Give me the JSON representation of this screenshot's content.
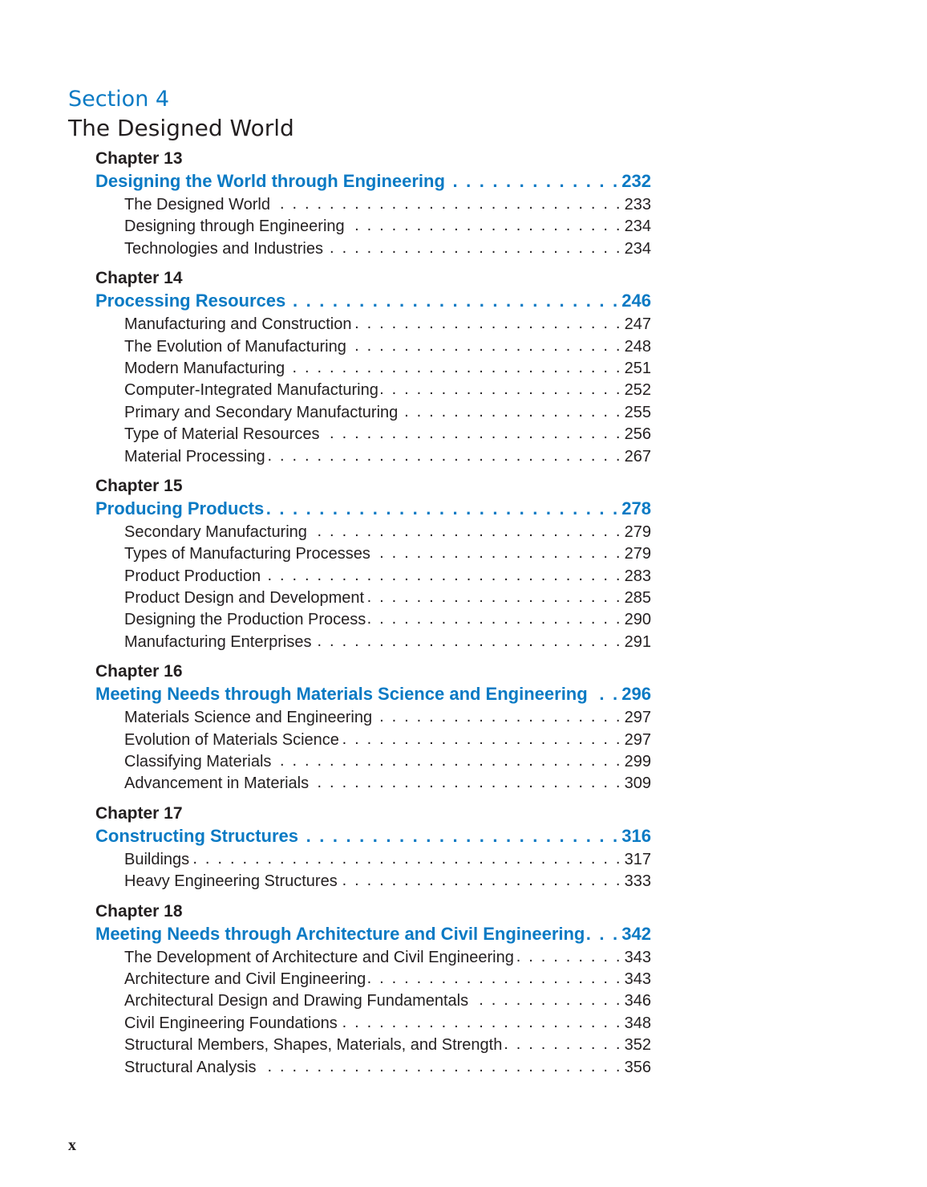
{
  "section": {
    "label": "Section 4",
    "title": "The Designed World"
  },
  "chapters": [
    {
      "label": "Chapter 13",
      "title": "Designing the World through Engineering",
      "page": "232",
      "items": [
        {
          "title": "The Designed World",
          "page": "233"
        },
        {
          "title": "Designing through Engineering",
          "page": "234"
        },
        {
          "title": "Technologies and Industries",
          "page": "234"
        }
      ]
    },
    {
      "label": "Chapter 14",
      "title": "Processing Resources",
      "page": "246",
      "items": [
        {
          "title": "Manufacturing and Construction",
          "page": "247"
        },
        {
          "title": "The Evolution of Manufacturing",
          "page": "248"
        },
        {
          "title": "Modern Manufacturing",
          "page": "251"
        },
        {
          "title": "Computer-Integrated Manufacturing",
          "page": "252"
        },
        {
          "title": "Primary and Secondary Manufacturing",
          "page": "255"
        },
        {
          "title": "Type of Material Resources",
          "page": "256"
        },
        {
          "title": "Material Processing",
          "page": "267"
        }
      ]
    },
    {
      "label": "Chapter 15",
      "title": "Producing Products",
      "page": "278",
      "items": [
        {
          "title": "Secondary Manufacturing",
          "page": "279"
        },
        {
          "title": "Types of Manufacturing Processes",
          "page": "279"
        },
        {
          "title": "Product Production",
          "page": "283"
        },
        {
          "title": "Product Design and Development",
          "page": "285"
        },
        {
          "title": "Designing the Production Process",
          "page": "290"
        },
        {
          "title": "Manufacturing Enterprises",
          "page": "291"
        }
      ]
    },
    {
      "label": "Chapter 16",
      "title": "Meeting Needs through Materials Science and Engineering",
      "page": "296",
      "items": [
        {
          "title": "Materials Science and Engineering",
          "page": "297"
        },
        {
          "title": "Evolution of Materials Science",
          "page": "297"
        },
        {
          "title": "Classifying Materials",
          "page": "299"
        },
        {
          "title": "Advancement in Materials",
          "page": "309"
        }
      ]
    },
    {
      "label": "Chapter 17",
      "title": "Constructing Structures",
      "page": "316",
      "items": [
        {
          "title": "Buildings",
          "page": "317"
        },
        {
          "title": "Heavy Engineering Structures",
          "page": "333"
        }
      ]
    },
    {
      "label": "Chapter 18",
      "title": "Meeting Needs through Architecture and Civil Engineering",
      "page": "342",
      "items": [
        {
          "title": "The Development of Architecture and Civil Engineering",
          "page": "343"
        },
        {
          "title": "Architecture and Civil Engineering",
          "page": "343"
        },
        {
          "title": "Architectural Design and Drawing Fundamentals",
          "page": "346"
        },
        {
          "title": "Civil Engineering Foundations",
          "page": "348"
        },
        {
          "title": "Structural Members, Shapes, Materials, and Strength",
          "page": "352"
        },
        {
          "title": "Structural Analysis",
          "page": "356"
        }
      ]
    }
  ],
  "folio": "x",
  "colors": {
    "accent": "#0a7ac4",
    "text": "#231f20"
  }
}
